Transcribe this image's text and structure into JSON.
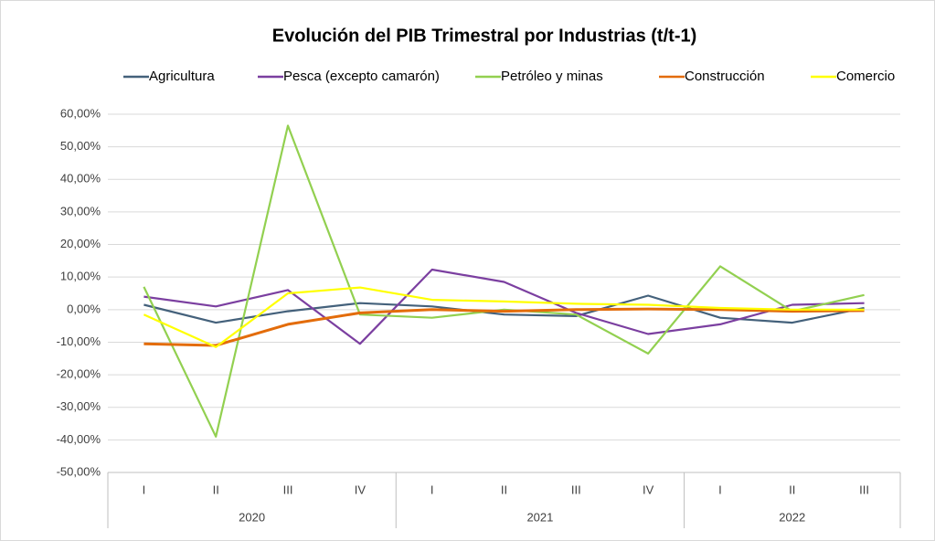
{
  "chart_data": {
    "type": "line",
    "title": "Evolución del PIB Trimestral por Industrias (t/t-1)",
    "categories": [
      "I",
      "II",
      "III",
      "IV",
      "I",
      "II",
      "III",
      "IV",
      "I",
      "II",
      "III"
    ],
    "year_groups": [
      {
        "label": "2020",
        "count": 4
      },
      {
        "label": "2021",
        "count": 4
      },
      {
        "label": "2022",
        "count": 3
      }
    ],
    "series": [
      {
        "name": "Agricultura",
        "color": "#44617b",
        "values": [
          1.5,
          -4,
          -0.5,
          2,
          1,
          -1.5,
          -2,
          4.3,
          -2.5,
          -4,
          0.5
        ]
      },
      {
        "name": "Pesca (excepto camarón)",
        "color": "#7b3fa0",
        "values": [
          4,
          1,
          6,
          -10.5,
          12.3,
          8.5,
          -1,
          -7.5,
          -4.5,
          1.5,
          2
        ]
      },
      {
        "name": "Petróleo y minas",
        "color": "#92d050",
        "values": [
          7,
          -39,
          56.5,
          -1.5,
          -2.5,
          0,
          -1.5,
          -13.5,
          13.3,
          -0.5,
          4.5
        ]
      },
      {
        "name": "Construcción",
        "color": "#e36c0a",
        "values": [
          -10.5,
          -11,
          -4.5,
          -1,
          0,
          -0.5,
          0,
          0.2,
          0,
          -0.5,
          -0.3
        ]
      },
      {
        "name": "Comercio",
        "color": "#ffff00",
        "values": [
          -1.5,
          -11.5,
          5,
          6.8,
          3,
          2.5,
          1.8,
          1.5,
          0.5,
          0,
          0
        ]
      }
    ],
    "ylim": [
      -50,
      60
    ],
    "yticks": [
      {
        "value": -50,
        "label": "-50,00%"
      },
      {
        "value": -40,
        "label": "-40,00%"
      },
      {
        "value": -30,
        "label": "-30,00%"
      },
      {
        "value": -20,
        "label": "-20,00%"
      },
      {
        "value": -10,
        "label": "-10,00%"
      },
      {
        "value": 0,
        "label": "0,00%"
      },
      {
        "value": 10,
        "label": "10,00%"
      },
      {
        "value": 20,
        "label": "20,00%"
      },
      {
        "value": 30,
        "label": "30,00%"
      },
      {
        "value": 40,
        "label": "40,00%"
      },
      {
        "value": 50,
        "label": "50,00%"
      },
      {
        "value": 60,
        "label": "60,00%"
      }
    ],
    "grid": true
  }
}
